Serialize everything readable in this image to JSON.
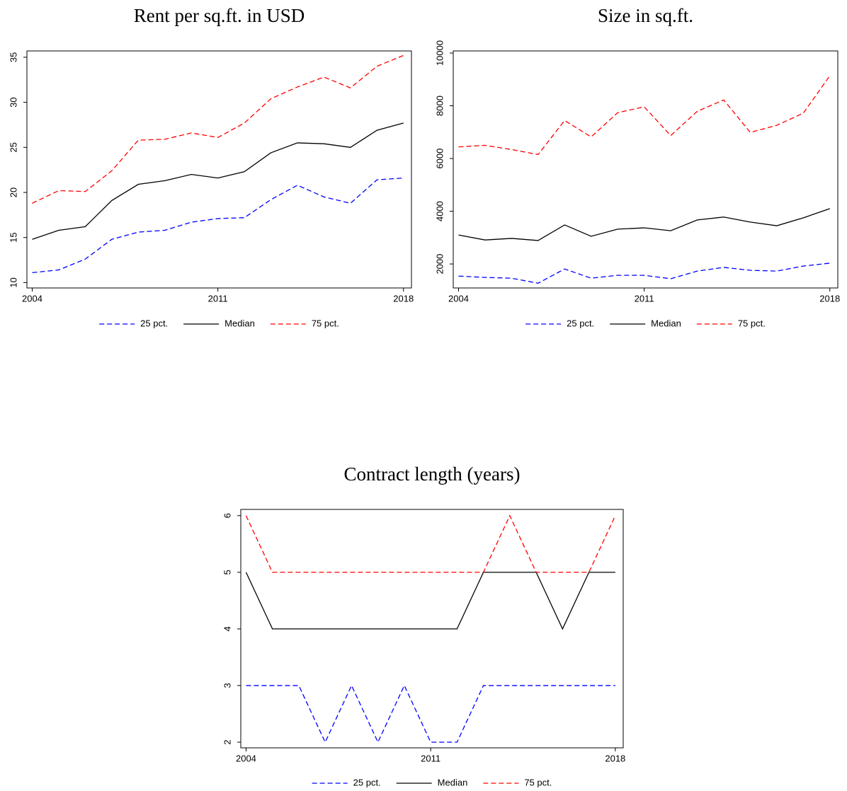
{
  "chart_data": [
    {
      "type": "line",
      "title": "Rent per sq.ft. in USD",
      "x": [
        2004,
        2005,
        2006,
        2007,
        2008,
        2009,
        2010,
        2011,
        2012,
        2013,
        2014,
        2015,
        2016,
        2017,
        2018
      ],
      "xlim": [
        2003.8,
        2018.3
      ],
      "xticks": [
        2004,
        2011,
        2018
      ],
      "ylim": [
        9.4,
        35.7
      ],
      "yticks": [
        10,
        15,
        20,
        25,
        30,
        35
      ],
      "legend": "bottom",
      "series": [
        {
          "name": "25 pct.",
          "color": "#0000ff",
          "dashed": true,
          "values": [
            11.1,
            11.4,
            12.6,
            14.8,
            15.6,
            15.8,
            16.7,
            17.1,
            17.2,
            19.2,
            20.8,
            19.5,
            18.8,
            21.4,
            21.6
          ]
        },
        {
          "name": "Median",
          "color": "#000000",
          "dashed": false,
          "values": [
            14.8,
            15.8,
            16.2,
            19.1,
            20.9,
            21.3,
            22.0,
            21.6,
            22.3,
            24.4,
            25.5,
            25.4,
            25.0,
            26.9,
            27.7
          ]
        },
        {
          "name": "75 pct.",
          "color": "#ff0000",
          "dashed": true,
          "values": [
            18.8,
            20.2,
            20.1,
            22.4,
            25.8,
            25.9,
            26.6,
            26.1,
            27.7,
            30.4,
            31.7,
            32.8,
            31.6,
            34.0,
            35.2
          ]
        }
      ]
    },
    {
      "type": "line",
      "title": "Size in sq.ft.",
      "x": [
        2004,
        2005,
        2006,
        2007,
        2008,
        2009,
        2010,
        2011,
        2012,
        2013,
        2014,
        2015,
        2016,
        2017,
        2018
      ],
      "xlim": [
        2003.8,
        2018.3
      ],
      "xticks": [
        2004,
        2011,
        2018
      ],
      "ylim": [
        1090,
        10080
      ],
      "yticks": [
        2000,
        4000,
        6000,
        8000,
        10000
      ],
      "legend": "bottom",
      "series": [
        {
          "name": "25 pct.",
          "color": "#0000ff",
          "dashed": true,
          "values": [
            1540,
            1490,
            1460,
            1270,
            1810,
            1460,
            1570,
            1570,
            1440,
            1730,
            1870,
            1760,
            1730,
            1920,
            2030
          ]
        },
        {
          "name": "Median",
          "color": "#000000",
          "dashed": false,
          "values": [
            3100,
            2910,
            2970,
            2890,
            3480,
            3050,
            3320,
            3370,
            3260,
            3670,
            3780,
            3590,
            3450,
            3750,
            4100
          ]
        },
        {
          "name": "75 pct.",
          "color": "#ff0000",
          "dashed": true,
          "values": [
            6440,
            6500,
            6340,
            6150,
            7440,
            6820,
            7740,
            7960,
            6870,
            7790,
            8220,
            6990,
            7260,
            7720,
            9140
          ]
        }
      ]
    },
    {
      "type": "line",
      "title": "Contract length (years)",
      "x": [
        2004,
        2005,
        2006,
        2007,
        2008,
        2009,
        2010,
        2011,
        2012,
        2013,
        2014,
        2015,
        2016,
        2017,
        2018
      ],
      "xlim": [
        2003.8,
        2018.3
      ],
      "xticks": [
        2004,
        2011,
        2018
      ],
      "ylim": [
        1.9,
        6.11
      ],
      "yticks": [
        2,
        3,
        4,
        5,
        6
      ],
      "legend": "bottom",
      "series": [
        {
          "name": "25 pct.",
          "color": "#0000ff",
          "dashed": true,
          "values": [
            3,
            3,
            3,
            2,
            3,
            2,
            3,
            2,
            2,
            3,
            3,
            3,
            3,
            3,
            3
          ]
        },
        {
          "name": "Median",
          "color": "#000000",
          "dashed": false,
          "values": [
            5,
            4,
            4,
            4,
            4,
            4,
            4,
            4,
            4,
            5,
            5,
            5,
            4,
            5,
            5
          ]
        },
        {
          "name": "75 pct.",
          "color": "#ff0000",
          "dashed": true,
          "values": [
            6,
            5,
            5,
            5,
            5,
            5,
            5,
            5,
            5,
            5,
            6,
            5,
            5,
            5,
            6
          ]
        }
      ]
    }
  ]
}
